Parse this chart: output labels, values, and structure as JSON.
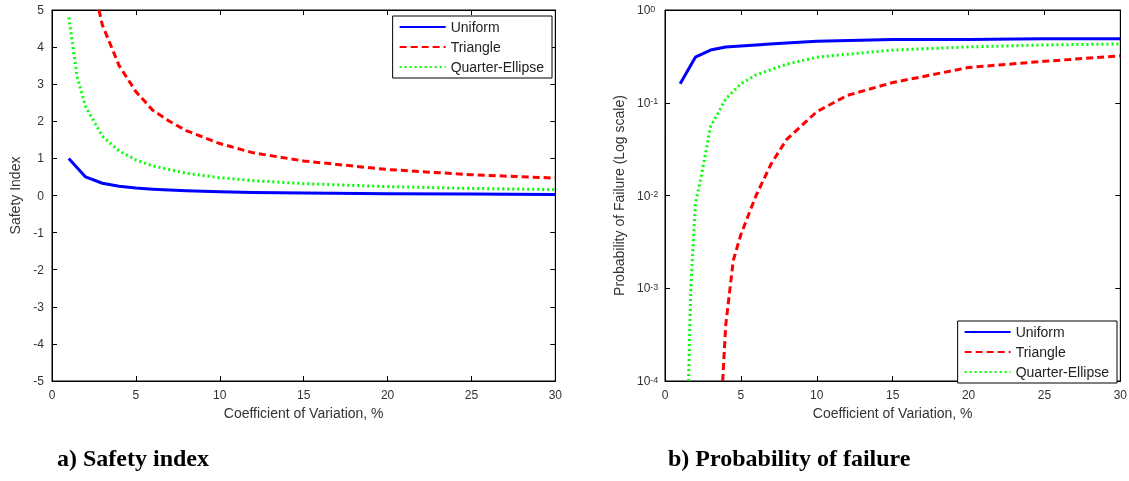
{
  "chart_data": [
    {
      "type": "line",
      "title": "a) Safety index",
      "xlabel": "Coefficient of Variation, %",
      "ylabel": "Safety Index",
      "xlim": [
        0,
        30
      ],
      "xticks": [
        0,
        5,
        10,
        15,
        20,
        25,
        30
      ],
      "ylim": [
        -5,
        5
      ],
      "yticks": [
        -5,
        -4,
        -3,
        -2,
        -1,
        0,
        1,
        2,
        3,
        4,
        5
      ],
      "grid": false,
      "legend": "top right",
      "marker": "none",
      "series": [
        {
          "name": "Uniform",
          "color": "#0000ff",
          "line_style": "solid",
          "x": [
            1,
            2,
            3,
            4,
            5,
            6,
            8,
            10,
            12,
            15,
            20,
            25,
            30
          ],
          "values": [
            1.0,
            0.5,
            0.33,
            0.25,
            0.2,
            0.17,
            0.13,
            0.1,
            0.08,
            0.07,
            0.05,
            0.04,
            0.03
          ]
        },
        {
          "name": "Triangle",
          "color": "#ff0000",
          "line_style": "dashed",
          "x": [
            2.8,
            3,
            4,
            5,
            6,
            7,
            8,
            10,
            12,
            15,
            20,
            25,
            30
          ],
          "values": [
            5.0,
            4.6,
            3.5,
            2.8,
            2.3,
            2.0,
            1.75,
            1.4,
            1.15,
            0.93,
            0.7,
            0.56,
            0.47
          ]
        },
        {
          "name": "Quarter-Ellipse",
          "color": "#00ff00",
          "line_style": "dotted",
          "x": [
            1,
            1.5,
            2,
            3,
            4,
            5,
            6,
            8,
            10,
            12,
            15,
            20,
            25,
            30
          ],
          "values": [
            4.8,
            3.2,
            2.4,
            1.6,
            1.2,
            0.96,
            0.8,
            0.6,
            0.48,
            0.4,
            0.32,
            0.24,
            0.19,
            0.16
          ]
        }
      ]
    },
    {
      "type": "line",
      "title": "b) Probability of failure",
      "xlabel": "Coefficient of Variation, %",
      "ylabel": "Probability of Failure (Log scale)",
      "log": "y",
      "xlim": [
        0,
        30
      ],
      "xticks": [
        0,
        5,
        10,
        15,
        20,
        25,
        30
      ],
      "ylim": [
        0.0001,
        1
      ],
      "yticks": [
        {
          "value": 0.0001,
          "label": "10$^{-4}$"
        },
        {
          "value": 0.001,
          "label": "10$^{-3}$"
        },
        {
          "value": 0.01,
          "label": "10$^{-2}$"
        },
        {
          "value": 0.1,
          "label": "10$^{-1}$"
        },
        {
          "value": 1,
          "label": "10$^{0}$"
        }
      ],
      "grid": false,
      "legend": "bottom right",
      "marker": "none",
      "series": [
        {
          "name": "Uniform",
          "color": "#0000ff",
          "line_style": "solid",
          "x": [
            1,
            2,
            3,
            4,
            5,
            6,
            8,
            10,
            15,
            20,
            25,
            30
          ],
          "values": [
            0.16,
            0.31,
            0.37,
            0.4,
            0.41,
            0.42,
            0.44,
            0.46,
            0.48,
            0.48,
            0.49,
            0.49
          ]
        },
        {
          "name": "Triangle",
          "color": "#ff0000",
          "line_style": "dashed",
          "x": [
            3.8,
            4,
            4.5,
            5,
            6,
            7,
            8,
            10,
            12,
            15,
            20,
            25,
            30
          ],
          "values": [
            0.0001,
            0.0004,
            0.002,
            0.0038,
            0.01,
            0.022,
            0.04,
            0.08,
            0.12,
            0.165,
            0.24,
            0.28,
            0.32
          ]
        },
        {
          "name": "Quarter-Ellipse",
          "color": "#00ff00",
          "line_style": "dotted",
          "x": [
            1.55,
            1.7,
            2,
            2.5,
            3,
            4,
            5,
            6,
            8,
            10,
            15,
            20,
            25,
            30
          ],
          "values": [
            0.0001,
            0.001,
            0.008,
            0.02,
            0.055,
            0.11,
            0.16,
            0.2,
            0.26,
            0.31,
            0.37,
            0.4,
            0.42,
            0.43
          ]
        }
      ]
    }
  ]
}
